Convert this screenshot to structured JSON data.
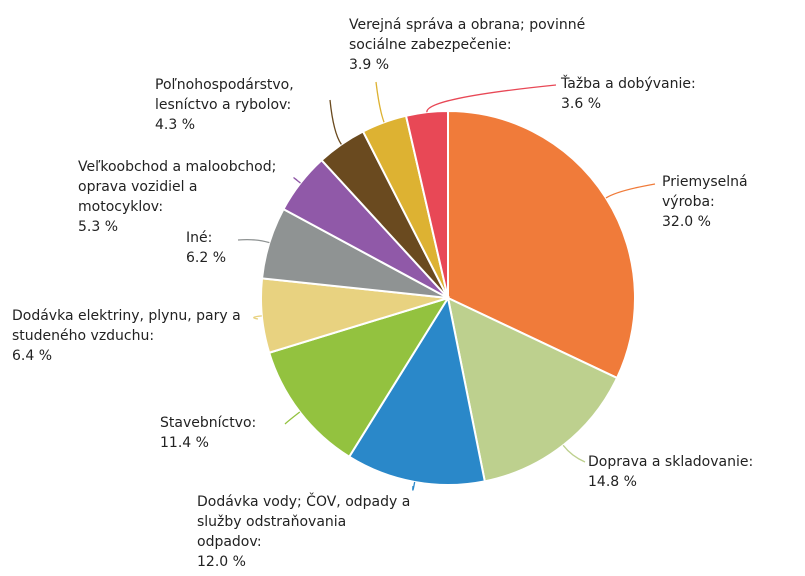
{
  "chart_data": {
    "type": "pie",
    "categories": [
      "Priemyselná výroba:",
      "Doprava a skladovanie:",
      "Dodávka vody; ČOV, odpady a služby odstraňovania odpadov:",
      "Stavebníctvo:",
      "Dodávka elektriny, plynu, pary a studeného vzduchu:",
      "Iné:",
      "Veľkoobchod a maloobchod; oprava vozidiel a motocyklov:",
      "Poľnohospodárstvo, lesníctvo a rybolov:",
      "Verejná správa a obrana; povinné sociálne zabezpečenie:",
      "Ťažba a dobývanie:"
    ],
    "values": [
      32.0,
      14.8,
      12.0,
      11.4,
      6.4,
      6.2,
      5.3,
      4.3,
      3.9,
      3.6
    ],
    "value_labels": [
      "32.0 %",
      "14.8 %",
      "12.0 %",
      "11.4 %",
      "6.4 %",
      "6.2 %",
      "5.3 %",
      "4.3 %",
      "3.9 %",
      "3.6 %"
    ],
    "colors": [
      "#f07b3a",
      "#bdd08e",
      "#2a88c9",
      "#93c23f",
      "#e8d280",
      "#8f9393",
      "#9059a8",
      "#6a4a1f",
      "#ddb232",
      "#e84856"
    ]
  }
}
